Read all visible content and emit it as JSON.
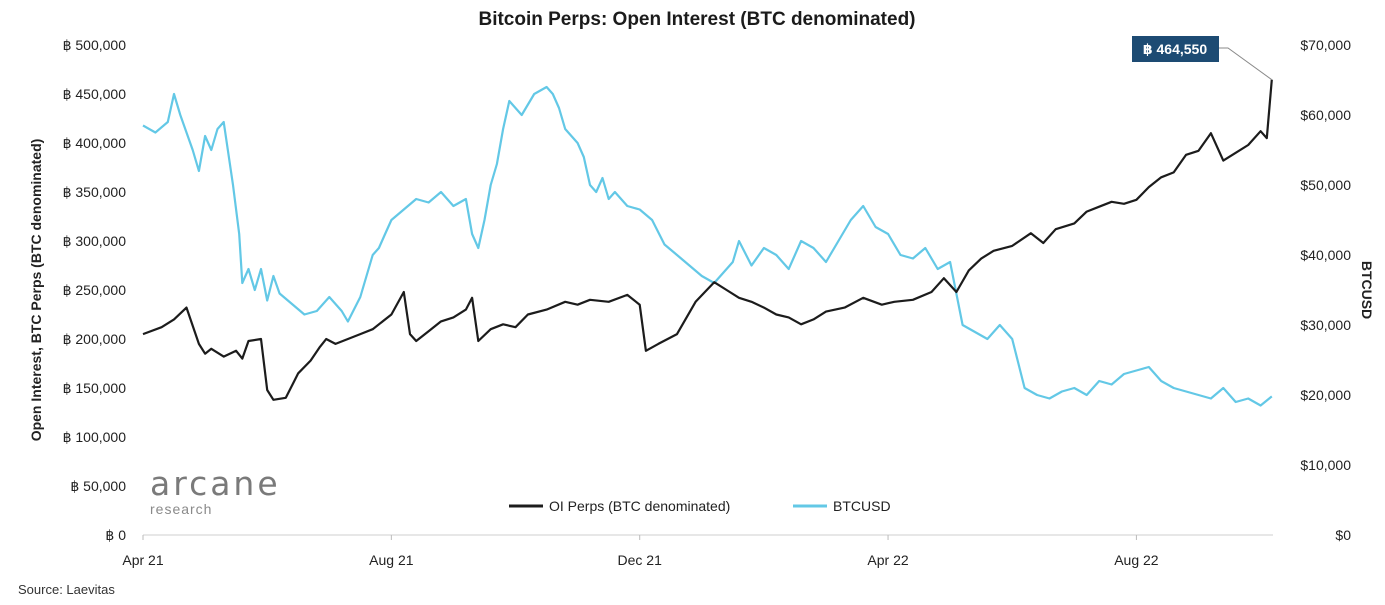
{
  "chart_data": {
    "type": "line",
    "title": "Bitcoin Perps: Open Interest (BTC denominated)",
    "ylabel_left": "Open Interest, BTC Perps (BTC denominated)",
    "ylabel_right": "BTCUSD",
    "ylim_left": [
      0,
      500000
    ],
    "ylim_right": [
      0,
      70000
    ],
    "y_ticks_left": [
      "฿ 500,000",
      "฿ 450,000",
      "฿ 400,000",
      "฿ 350,000",
      "฿ 300,000",
      "฿ 250,000",
      "฿ 200,000",
      "฿ 150,000",
      "฿ 100,000",
      "฿ 50,000",
      "฿ 0"
    ],
    "y_ticks_right": [
      "$70,000",
      "$60,000",
      "$50,000",
      "$40,000",
      "$30,000",
      "$20,000",
      "$10,000",
      "$0"
    ],
    "x_ticks": [
      {
        "label": "Apr 21",
        "month": 0
      },
      {
        "label": "Aug 21",
        "month": 4
      },
      {
        "label": "Dec 21",
        "month": 8
      },
      {
        "label": "Apr 22",
        "month": 12
      },
      {
        "label": "Aug 22",
        "month": 16
      }
    ],
    "x_range_months": [
      0,
      18.2
    ],
    "legend": {
      "position": "bottom-center",
      "entries": [
        "OI Perps (BTC denominated)",
        "BTCUSD"
      ]
    },
    "annotation": {
      "label": "฿ 464,550",
      "value": 464550,
      "month": 18.18,
      "bg_color": "#1d4b73"
    },
    "series": [
      {
        "name": "OI Perps (BTC denominated)",
        "axis": "left",
        "color": "#1c1c1c",
        "x": [
          0,
          0.3,
          0.5,
          0.7,
          0.9,
          1.0,
          1.1,
          1.3,
          1.5,
          1.6,
          1.7,
          1.9,
          2.0,
          2.1,
          2.3,
          2.5,
          2.7,
          2.85,
          2.9,
          2.95,
          3.1,
          3.3,
          3.5,
          3.7,
          4.0,
          4.2,
          4.3,
          4.4,
          4.6,
          4.8,
          5.0,
          5.2,
          5.3,
          5.4,
          5.6,
          5.8,
          6.0,
          6.2,
          6.5,
          6.8,
          7.0,
          7.2,
          7.5,
          7.8,
          8.0,
          8.1,
          8.3,
          8.6,
          8.9,
          9.2,
          9.4,
          9.6,
          9.8,
          10.0,
          10.2,
          10.4,
          10.6,
          10.8,
          11.0,
          11.3,
          11.6,
          11.9,
          12.1,
          12.4,
          12.7,
          12.9,
          13.1,
          13.3,
          13.5,
          13.7,
          14.0,
          14.3,
          14.5,
          14.7,
          15.0,
          15.2,
          15.4,
          15.6,
          15.8,
          16.0,
          16.2,
          16.4,
          16.6,
          16.8,
          17.0,
          17.2,
          17.4,
          17.6,
          17.8,
          18.0,
          18.1,
          18.18
        ],
        "y": [
          205000,
          212000,
          220000,
          232000,
          195000,
          185000,
          190000,
          182000,
          188000,
          180000,
          198000,
          200000,
          148000,
          138000,
          140000,
          165000,
          178000,
          192000,
          196000,
          200000,
          195000,
          200000,
          205000,
          210000,
          225000,
          248000,
          205000,
          198000,
          208000,
          218000,
          222000,
          230000,
          242000,
          198000,
          210000,
          215000,
          212000,
          225000,
          230000,
          238000,
          235000,
          240000,
          238000,
          245000,
          235000,
          188000,
          195000,
          205000,
          238000,
          258000,
          250000,
          242000,
          238000,
          232000,
          225000,
          222000,
          215000,
          220000,
          228000,
          232000,
          242000,
          235000,
          238000,
          240000,
          248000,
          262000,
          248000,
          270000,
          282000,
          290000,
          295000,
          308000,
          298000,
          312000,
          318000,
          330000,
          335000,
          340000,
          338000,
          342000,
          355000,
          365000,
          370000,
          388000,
          392000,
          410000,
          382000,
          390000,
          398000,
          412000,
          405000,
          464550
        ]
      },
      {
        "name": "BTCUSD",
        "axis": "right",
        "color": "#63c8e6",
        "x": [
          0,
          0.2,
          0.4,
          0.5,
          0.6,
          0.8,
          0.9,
          1.0,
          1.1,
          1.2,
          1.3,
          1.45,
          1.55,
          1.6,
          1.7,
          1.8,
          1.9,
          2.0,
          2.1,
          2.2,
          2.4,
          2.6,
          2.8,
          3.0,
          3.2,
          3.3,
          3.5,
          3.7,
          3.8,
          3.9,
          4.0,
          4.2,
          4.4,
          4.6,
          4.8,
          5.0,
          5.2,
          5.3,
          5.4,
          5.5,
          5.6,
          5.7,
          5.8,
          5.9,
          6.1,
          6.3,
          6.5,
          6.6,
          6.7,
          6.8,
          6.9,
          7.0,
          7.1,
          7.2,
          7.3,
          7.4,
          7.5,
          7.6,
          7.8,
          8.0,
          8.2,
          8.4,
          8.6,
          8.8,
          9.0,
          9.2,
          9.4,
          9.5,
          9.6,
          9.8,
          10.0,
          10.2,
          10.4,
          10.6,
          10.8,
          11.0,
          11.2,
          11.4,
          11.6,
          11.8,
          12.0,
          12.2,
          12.4,
          12.6,
          12.8,
          13.0,
          13.2,
          13.4,
          13.6,
          13.8,
          14.0,
          14.2,
          14.4,
          14.6,
          14.8,
          15.0,
          15.2,
          15.4,
          15.6,
          15.8,
          16.0,
          16.2,
          16.4,
          16.6,
          16.8,
          17.0,
          17.2,
          17.4,
          17.6,
          17.8,
          18.0,
          18.18
        ],
        "y": [
          58500,
          57500,
          59000,
          63000,
          60000,
          55000,
          52000,
          57000,
          55000,
          58000,
          59000,
          50000,
          43000,
          36000,
          38000,
          35000,
          38000,
          33500,
          37000,
          34500,
          33000,
          31500,
          32000,
          34000,
          32000,
          30500,
          34000,
          40000,
          41000,
          43000,
          45000,
          46500,
          48000,
          47500,
          49000,
          47000,
          48000,
          43000,
          41000,
          45000,
          50000,
          53000,
          58000,
          62000,
          60000,
          63000,
          64000,
          63000,
          61000,
          58000,
          57000,
          56000,
          54000,
          50000,
          49000,
          51000,
          48000,
          49000,
          47000,
          46500,
          45000,
          41500,
          40000,
          38500,
          37000,
          36000,
          38000,
          39000,
          42000,
          38500,
          41000,
          40000,
          38000,
          42000,
          41000,
          39000,
          42000,
          45000,
          47000,
          44000,
          43000,
          40000,
          39500,
          41000,
          38000,
          39000,
          30000,
          29000,
          28000,
          30000,
          28000,
          21000,
          20000,
          19500,
          20500,
          21000,
          20000,
          22000,
          21500,
          23000,
          23500,
          24000,
          22000,
          21000,
          20500,
          20000,
          19500,
          21000,
          19000,
          19500,
          18500,
          19800
        ]
      }
    ]
  },
  "branding": {
    "logo_main": "arcane",
    "logo_sub": "research"
  },
  "source": "Source: Laevitas"
}
